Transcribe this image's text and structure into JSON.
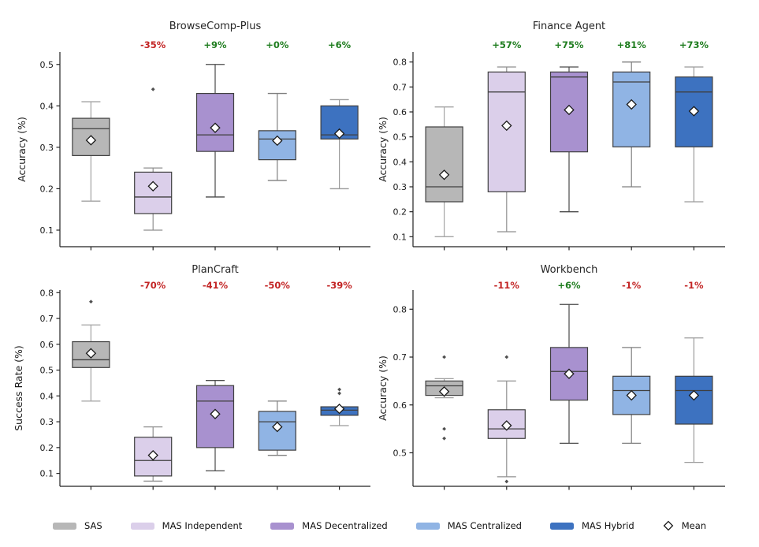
{
  "legend": {
    "items": [
      {
        "label": "SAS",
        "type": "patch",
        "color": "#b7b7b7"
      },
      {
        "label": "MAS Independent",
        "type": "patch",
        "color": "#dbcfea"
      },
      {
        "label": "MAS Decentralized",
        "type": "patch",
        "color": "#a891cf"
      },
      {
        "label": "MAS Centralized",
        "type": "patch",
        "color": "#90b4e4"
      },
      {
        "label": "MAS Hybrid",
        "type": "patch",
        "color": "#3d72c0"
      },
      {
        "label": "Mean",
        "type": "marker",
        "marker": "diamond"
      }
    ]
  },
  "chart_data": [
    {
      "type": "boxplot",
      "title": "BrowseComp-Plus",
      "ylabel": "Accuracy (%)",
      "yticks": [
        0.1,
        0.2,
        0.3,
        0.4,
        0.5
      ],
      "ylim": [
        0.06,
        0.53
      ],
      "annotations": [
        {
          "over": "MAS Independent",
          "text": "-35%",
          "color": "#c32525"
        },
        {
          "over": "MAS Decentralized",
          "text": "+9%",
          "color": "#1f7d1f"
        },
        {
          "over": "MAS Centralized",
          "text": "+0%",
          "color": "#1f7d1f"
        },
        {
          "over": "MAS Hybrid",
          "text": "+6%",
          "color": "#1f7d1f"
        }
      ],
      "boxes": [
        {
          "series": "SAS",
          "fill": "#b7b7b7",
          "whisker_color": "#a3a3a3",
          "whisker_low": 0.17,
          "q1": 0.28,
          "median": 0.345,
          "q3": 0.37,
          "whisker_high": 0.41,
          "mean": 0.317,
          "outliers": []
        },
        {
          "series": "MAS Independent",
          "fill": "#dbcfea",
          "whisker_color": "#8f8f8f",
          "whisker_low": 0.1,
          "q1": 0.14,
          "median": 0.18,
          "q3": 0.24,
          "whisker_high": 0.25,
          "mean": 0.206,
          "outliers": [
            0.44
          ]
        },
        {
          "series": "MAS Decentralized",
          "fill": "#a891cf",
          "whisker_color": "#4a4a4a",
          "whisker_low": 0.18,
          "q1": 0.29,
          "median": 0.33,
          "q3": 0.43,
          "whisker_high": 0.5,
          "mean": 0.347,
          "outliers": []
        },
        {
          "series": "MAS Centralized",
          "fill": "#90b4e4",
          "whisker_color": "#7f7f7f",
          "whisker_low": 0.22,
          "q1": 0.27,
          "median": 0.32,
          "q3": 0.34,
          "whisker_high": 0.43,
          "mean": 0.316,
          "outliers": []
        },
        {
          "series": "MAS Hybrid",
          "fill": "#3d72c0",
          "whisker_color": "#9b9b9b",
          "whisker_low": 0.2,
          "q1": 0.32,
          "median": 0.33,
          "q3": 0.4,
          "whisker_high": 0.415,
          "mean": 0.333,
          "outliers": []
        }
      ]
    },
    {
      "type": "boxplot",
      "title": "Finance Agent",
      "ylabel": "Accuracy (%)",
      "yticks": [
        0.1,
        0.2,
        0.3,
        0.4,
        0.5,
        0.6,
        0.7,
        0.8
      ],
      "ylim": [
        0.06,
        0.84
      ],
      "annotations": [
        {
          "over": "MAS Independent",
          "text": "+57%",
          "color": "#1f7d1f"
        },
        {
          "over": "MAS Decentralized",
          "text": "+75%",
          "color": "#1f7d1f"
        },
        {
          "over": "MAS Centralized",
          "text": "+81%",
          "color": "#1f7d1f"
        },
        {
          "over": "MAS Hybrid",
          "text": "+73%",
          "color": "#1f7d1f"
        }
      ],
      "boxes": [
        {
          "series": "SAS",
          "fill": "#b7b7b7",
          "whisker_color": "#a3a3a3",
          "whisker_low": 0.1,
          "q1": 0.24,
          "median": 0.3,
          "q3": 0.54,
          "whisker_high": 0.62,
          "mean": 0.348,
          "outliers": []
        },
        {
          "series": "MAS Independent",
          "fill": "#dbcfea",
          "whisker_color": "#8f8f8f",
          "whisker_low": 0.12,
          "q1": 0.28,
          "median": 0.68,
          "q3": 0.76,
          "whisker_high": 0.78,
          "mean": 0.545,
          "outliers": []
        },
        {
          "series": "MAS Decentralized",
          "fill": "#a891cf",
          "whisker_color": "#4a4a4a",
          "whisker_low": 0.2,
          "q1": 0.44,
          "median": 0.74,
          "q3": 0.76,
          "whisker_high": 0.78,
          "mean": 0.608,
          "outliers": []
        },
        {
          "series": "MAS Centralized",
          "fill": "#90b4e4",
          "whisker_color": "#7f7f7f",
          "whisker_low": 0.3,
          "q1": 0.46,
          "median": 0.72,
          "q3": 0.76,
          "whisker_high": 0.8,
          "mean": 0.63,
          "outliers": []
        },
        {
          "series": "MAS Hybrid",
          "fill": "#3d72c0",
          "whisker_color": "#9b9b9b",
          "whisker_low": 0.24,
          "q1": 0.46,
          "median": 0.68,
          "q3": 0.74,
          "whisker_high": 0.78,
          "mean": 0.603,
          "outliers": []
        }
      ]
    },
    {
      "type": "boxplot",
      "title": "PlanCraft",
      "ylabel": "Success Rate (%)",
      "yticks": [
        0.1,
        0.2,
        0.3,
        0.4,
        0.5,
        0.6,
        0.7,
        0.8
      ],
      "ylim": [
        0.05,
        0.81
      ],
      "annotations": [
        {
          "over": "MAS Independent",
          "text": "-70%",
          "color": "#c32525"
        },
        {
          "over": "MAS Decentralized",
          "text": "-41%",
          "color": "#c32525"
        },
        {
          "over": "MAS Centralized",
          "text": "-50%",
          "color": "#c32525"
        },
        {
          "over": "MAS Hybrid",
          "text": "-39%",
          "color": "#c32525"
        }
      ],
      "boxes": [
        {
          "series": "SAS",
          "fill": "#b7b7b7",
          "whisker_color": "#a3a3a3",
          "whisker_low": 0.38,
          "q1": 0.51,
          "median": 0.54,
          "q3": 0.61,
          "whisker_high": 0.675,
          "mean": 0.565,
          "outliers": [
            0.765
          ]
        },
        {
          "series": "MAS Independent",
          "fill": "#dbcfea",
          "whisker_color": "#8f8f8f",
          "whisker_low": 0.07,
          "q1": 0.09,
          "median": 0.15,
          "q3": 0.24,
          "whisker_high": 0.28,
          "mean": 0.17,
          "outliers": []
        },
        {
          "series": "MAS Decentralized",
          "fill": "#a891cf",
          "whisker_color": "#4a4a4a",
          "whisker_low": 0.11,
          "q1": 0.2,
          "median": 0.38,
          "q3": 0.44,
          "whisker_high": 0.46,
          "mean": 0.33,
          "outliers": []
        },
        {
          "series": "MAS Centralized",
          "fill": "#90b4e4",
          "whisker_color": "#7f7f7f",
          "whisker_low": 0.17,
          "q1": 0.19,
          "median": 0.3,
          "q3": 0.34,
          "whisker_high": 0.38,
          "mean": 0.28,
          "outliers": []
        },
        {
          "series": "MAS Hybrid",
          "fill": "#3d72c0",
          "whisker_color": "#9b9b9b",
          "whisker_low": 0.285,
          "q1": 0.325,
          "median": 0.345,
          "q3": 0.358,
          "whisker_high": 0.358,
          "mean": 0.35,
          "outliers": [
            0.41,
            0.425
          ]
        }
      ]
    },
    {
      "type": "boxplot",
      "title": "Workbench",
      "ylabel": "Accuracy (%)",
      "yticks": [
        0.5,
        0.6,
        0.7,
        0.8
      ],
      "ylim": [
        0.43,
        0.84
      ],
      "annotations": [
        {
          "over": "MAS Independent",
          "text": "-11%",
          "color": "#c32525"
        },
        {
          "over": "MAS Decentralized",
          "text": "+6%",
          "color": "#1f7d1f"
        },
        {
          "over": "MAS Centralized",
          "text": "-1%",
          "color": "#c32525"
        },
        {
          "over": "MAS Hybrid",
          "text": "-1%",
          "color": "#c32525"
        }
      ],
      "boxes": [
        {
          "series": "SAS",
          "fill": "#b7b7b7",
          "whisker_color": "#a3a3a3",
          "whisker_low": 0.615,
          "q1": 0.62,
          "median": 0.64,
          "q3": 0.65,
          "whisker_high": 0.655,
          "mean": 0.628,
          "outliers": [
            0.7,
            0.55,
            0.53
          ]
        },
        {
          "series": "MAS Independent",
          "fill": "#dbcfea",
          "whisker_color": "#8f8f8f",
          "whisker_low": 0.45,
          "q1": 0.53,
          "median": 0.55,
          "q3": 0.59,
          "whisker_high": 0.65,
          "mean": 0.557,
          "outliers": [
            0.7,
            0.44
          ]
        },
        {
          "series": "MAS Decentralized",
          "fill": "#a891cf",
          "whisker_color": "#4a4a4a",
          "whisker_low": 0.52,
          "q1": 0.61,
          "median": 0.67,
          "q3": 0.72,
          "whisker_high": 0.81,
          "mean": 0.665,
          "outliers": []
        },
        {
          "series": "MAS Centralized",
          "fill": "#90b4e4",
          "whisker_color": "#7f7f7f",
          "whisker_low": 0.52,
          "q1": 0.58,
          "median": 0.63,
          "q3": 0.66,
          "whisker_high": 0.72,
          "mean": 0.62,
          "outliers": []
        },
        {
          "series": "MAS Hybrid",
          "fill": "#3d72c0",
          "whisker_color": "#9b9b9b",
          "whisker_low": 0.48,
          "q1": 0.56,
          "median": 0.63,
          "q3": 0.66,
          "whisker_high": 0.74,
          "mean": 0.62,
          "outliers": []
        }
      ]
    }
  ],
  "style": {
    "box_edge_color": "#3f3f3f",
    "median_color": "#3f3f3f",
    "spine_color": "#222222",
    "tick_label_color": "#1a1a1a",
    "mean_marker_fill": "#ffffff",
    "mean_marker_edge": "#1a1a1a",
    "outlier_color": "#4f4f4f"
  }
}
